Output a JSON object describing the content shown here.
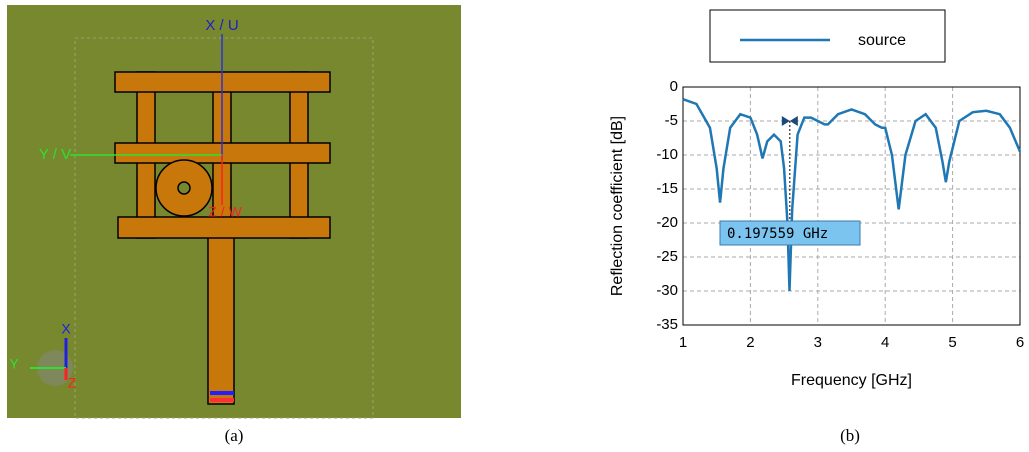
{
  "panel_a": {
    "axis_x": "X / U",
    "axis_y": "Y / V",
    "axis_z": "Z / W",
    "triad_x": "X",
    "triad_y": "Y",
    "triad_z": "Z",
    "caption": "(a)"
  },
  "chart_data": {
    "type": "line",
    "x": [
      1.0,
      1.2,
      1.4,
      1.5,
      1.55,
      1.6,
      1.7,
      1.85,
      2.0,
      2.1,
      2.18,
      2.25,
      2.35,
      2.45,
      2.5,
      2.55,
      2.58,
      2.62,
      2.7,
      2.8,
      2.9,
      3.0,
      3.1,
      3.15,
      3.3,
      3.5,
      3.7,
      3.85,
      3.95,
      4.0,
      4.1,
      4.2,
      4.3,
      4.45,
      4.6,
      4.75,
      4.85,
      4.9,
      4.95,
      5.1,
      5.3,
      5.5,
      5.7,
      5.85,
      6.0
    ],
    "series": [
      {
        "name": "source",
        "color": "#1f77b4",
        "values": [
          -1.8,
          -2.5,
          -6,
          -12,
          -17,
          -12,
          -6,
          -4,
          -4.5,
          -7,
          -10.5,
          -8,
          -7,
          -8,
          -12,
          -20,
          -30,
          -18,
          -7,
          -4.5,
          -4.5,
          -5,
          -5.5,
          -5.5,
          -4,
          -3.3,
          -4,
          -5.5,
          -6,
          -6,
          -10,
          -18,
          -10,
          -5,
          -4,
          -6,
          -11,
          -14,
          -11,
          -5,
          -3.7,
          -3.5,
          -4,
          -6,
          -9.5
        ]
      }
    ],
    "xlim": [
      1,
      6
    ],
    "ylim": [
      -35,
      0
    ],
    "xticks": [
      1,
      2,
      3,
      4,
      5,
      6
    ],
    "yticks": [
      0,
      -5,
      -10,
      -15,
      -20,
      -25,
      -30,
      -35
    ],
    "grid": true,
    "xlabel": "Frequency [GHz]",
    "ylabel": "Reflection coefficient [dB]",
    "annotation": "0.197559 GHz",
    "caption": "(b)"
  }
}
